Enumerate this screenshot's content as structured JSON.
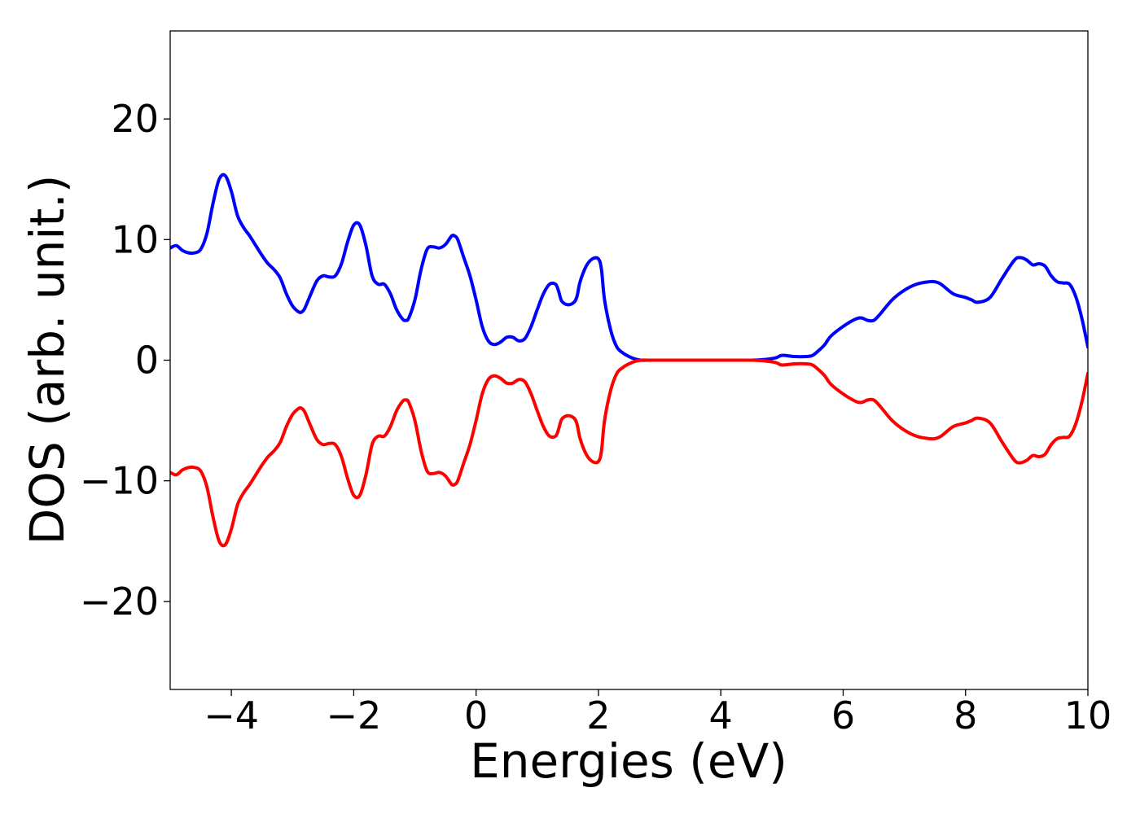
{
  "chart_data": {
    "type": "line",
    "title": "",
    "xlabel": "Energies (eV)",
    "ylabel": "DOS (arb. unit.)",
    "xlim": [
      -5,
      10
    ],
    "ylim": [
      -27.3,
      27.3
    ],
    "x_ticks": [
      -4,
      -2,
      0,
      2,
      4,
      6,
      8,
      10
    ],
    "x_tick_labels": [
      "−4",
      "−2",
      "0",
      "2",
      "4",
      "6",
      "8",
      "10"
    ],
    "y_ticks": [
      -20,
      -10,
      0,
      10,
      20
    ],
    "y_tick_labels": [
      "−20",
      "−10",
      "0",
      "10",
      "20"
    ],
    "grid": false,
    "legend": "none",
    "series": [
      {
        "color": "#0000ff",
        "x": [
          -5.0,
          -4.9,
          -4.8,
          -4.7,
          -4.6,
          -4.5,
          -4.4,
          -4.3,
          -4.2,
          -4.1,
          -4.0,
          -3.9,
          -3.8,
          -3.7,
          -3.6,
          -3.5,
          -3.4,
          -3.3,
          -3.2,
          -3.1,
          -3.0,
          -2.9,
          -2.85,
          -2.8,
          -2.7,
          -2.6,
          -2.5,
          -2.4,
          -2.3,
          -2.2,
          -2.1,
          -2.0,
          -1.9,
          -1.8,
          -1.7,
          -1.6,
          -1.5,
          -1.4,
          -1.3,
          -1.2,
          -1.15,
          -1.1,
          -1.0,
          -0.9,
          -0.8,
          -0.7,
          -0.6,
          -0.5,
          -0.4,
          -0.35,
          -0.3,
          -0.2,
          -0.1,
          0.0,
          0.1,
          0.2,
          0.3,
          0.4,
          0.5,
          0.6,
          0.7,
          0.8,
          0.9,
          1.0,
          1.1,
          1.2,
          1.3,
          1.35,
          1.4,
          1.5,
          1.6,
          1.65,
          1.7,
          1.8,
          1.9,
          2.0,
          2.05,
          2.1,
          2.2,
          2.3,
          2.4,
          2.5,
          2.6,
          2.7,
          2.8,
          3.0,
          3.5,
          4.0,
          4.5,
          4.7,
          4.9,
          5.0,
          5.2,
          5.4,
          5.5,
          5.6,
          5.7,
          5.8,
          6.0,
          6.2,
          6.3,
          6.4,
          6.5,
          6.6,
          6.8,
          7.0,
          7.2,
          7.4,
          7.5,
          7.6,
          7.8,
          8.0,
          8.1,
          8.2,
          8.4,
          8.6,
          8.8,
          8.9,
          9.0,
          9.1,
          9.2,
          9.3,
          9.4,
          9.5,
          9.6,
          9.7,
          9.8,
          9.9,
          10.0
        ],
        "y": [
          9.3,
          9.5,
          9.1,
          8.9,
          8.9,
          9.2,
          10.5,
          13.0,
          15.0,
          15.3,
          14.0,
          12.0,
          11.0,
          10.3,
          9.5,
          8.7,
          8.0,
          7.5,
          6.8,
          5.5,
          4.5,
          4.0,
          4.0,
          4.3,
          5.5,
          6.6,
          7.0,
          6.9,
          7.0,
          8.0,
          9.8,
          11.2,
          11.2,
          9.5,
          7.0,
          6.3,
          6.3,
          5.5,
          4.2,
          3.4,
          3.3,
          3.5,
          5.0,
          7.5,
          9.2,
          9.4,
          9.3,
          9.6,
          10.3,
          10.3,
          10.0,
          8.5,
          7.0,
          5.0,
          2.8,
          1.6,
          1.3,
          1.5,
          1.9,
          1.9,
          1.6,
          1.8,
          2.8,
          4.2,
          5.5,
          6.3,
          6.3,
          5.7,
          4.9,
          4.6,
          4.8,
          5.3,
          6.5,
          7.8,
          8.4,
          8.4,
          7.5,
          5.0,
          2.5,
          1.1,
          0.6,
          0.3,
          0.1,
          0.0,
          0.0,
          0.0,
          0.0,
          0.0,
          0.0,
          0.05,
          0.2,
          0.4,
          0.3,
          0.3,
          0.4,
          0.8,
          1.3,
          2.0,
          2.8,
          3.4,
          3.5,
          3.3,
          3.3,
          3.8,
          5.0,
          5.8,
          6.3,
          6.5,
          6.5,
          6.3,
          5.5,
          5.2,
          5.0,
          4.8,
          5.2,
          6.8,
          8.3,
          8.5,
          8.3,
          7.9,
          8.0,
          7.8,
          7.0,
          6.5,
          6.4,
          6.3,
          5.3,
          3.5,
          1.1
        ],
        "mirrored_negative_color": "#ff0000"
      }
    ]
  }
}
